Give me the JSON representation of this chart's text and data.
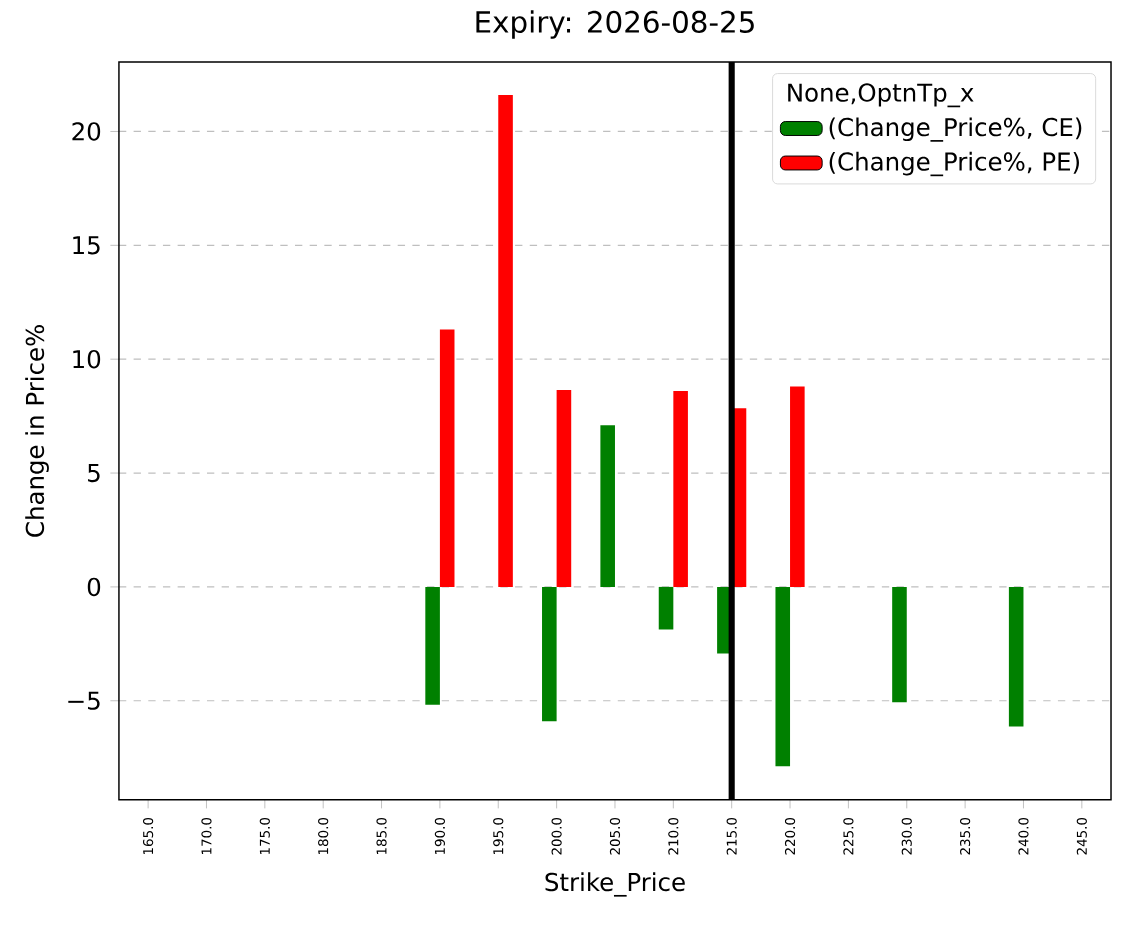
{
  "chart_data": {
    "type": "bar",
    "title": "Expiry: 2026-08-25",
    "xlabel": "Strike_Price",
    "ylabel": "Change in Price%",
    "legend_title": "None,OptnTp_x",
    "x": [
      190,
      195,
      200,
      205,
      210,
      215,
      220,
      230,
      240
    ],
    "series": [
      {
        "name": "(Change_Price%, CE)",
        "color": "#008000",
        "values": [
          -5.17,
          null,
          -5.9,
          7.1,
          -1.87,
          -2.92,
          -7.88,
          -5.07,
          -6.13
        ]
      },
      {
        "name": "(Change_Price%, PE)",
        "color": "#ff0000",
        "values": [
          11.3,
          21.6,
          8.65,
          null,
          8.6,
          7.85,
          8.8,
          null,
          null
        ]
      }
    ],
    "xlim": [
      162.5,
      247.5
    ],
    "ylim": [
      -9.35,
      23.05
    ],
    "xticks": [
      {
        "value": 165,
        "label": "165.0"
      },
      {
        "value": 170,
        "label": "170.0"
      },
      {
        "value": 175,
        "label": "175.0"
      },
      {
        "value": 180,
        "label": "180.0"
      },
      {
        "value": 185,
        "label": "185.0"
      },
      {
        "value": 190,
        "label": "190.0"
      },
      {
        "value": 195,
        "label": "195.0"
      },
      {
        "value": 200,
        "label": "200.0"
      },
      {
        "value": 205,
        "label": "205.0"
      },
      {
        "value": 210,
        "label": "210.0"
      },
      {
        "value": 215,
        "label": "215.0"
      },
      {
        "value": 220,
        "label": "220.0"
      },
      {
        "value": 225,
        "label": "225.0"
      },
      {
        "value": 230,
        "label": "230.0"
      },
      {
        "value": 235,
        "label": "235.0"
      },
      {
        "value": 240,
        "label": "240.0"
      },
      {
        "value": 245,
        "label": "245.0"
      }
    ],
    "yticks": [
      {
        "value": -5,
        "label": "−5"
      },
      0,
      5,
      10,
      15,
      20
    ],
    "grid": "y",
    "legend": "top right",
    "ref_lines": [
      {
        "axis": "x",
        "value": 215,
        "color": "#000000"
      }
    ]
  }
}
